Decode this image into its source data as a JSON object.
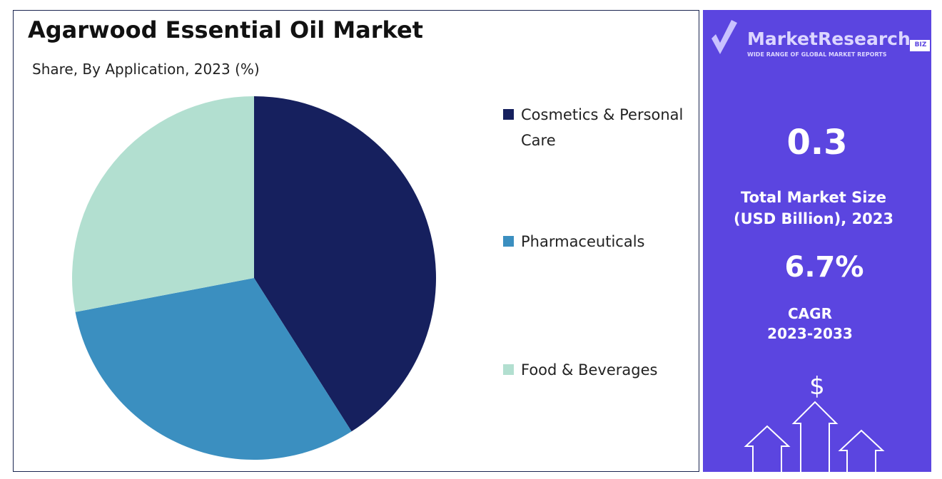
{
  "chart_data": {
    "type": "pie",
    "title": "Agarwood Essential Oil Market",
    "subtitle": "Share, By Application, 2023 (%)",
    "categories": [
      "Cosmetics & Personal Care",
      "Pharmaceuticals",
      "Food & Beverages"
    ],
    "values": [
      41,
      31,
      28
    ],
    "colors": [
      "#16205e",
      "#3b8fc0",
      "#b2dfd0"
    ]
  },
  "sidebar": {
    "logo": "MarketResearch",
    "logo_badge": "BIZ",
    "tagline": "WIDE RANGE OF GLOBAL MARKET REPORTS",
    "market_size": "0.3",
    "market_size_label": "Total Market Size (USD Billion), 2023",
    "cagr": "6.7%",
    "cagr_label": "CAGR",
    "cagr_period": "2023-2033",
    "icon": "$"
  }
}
